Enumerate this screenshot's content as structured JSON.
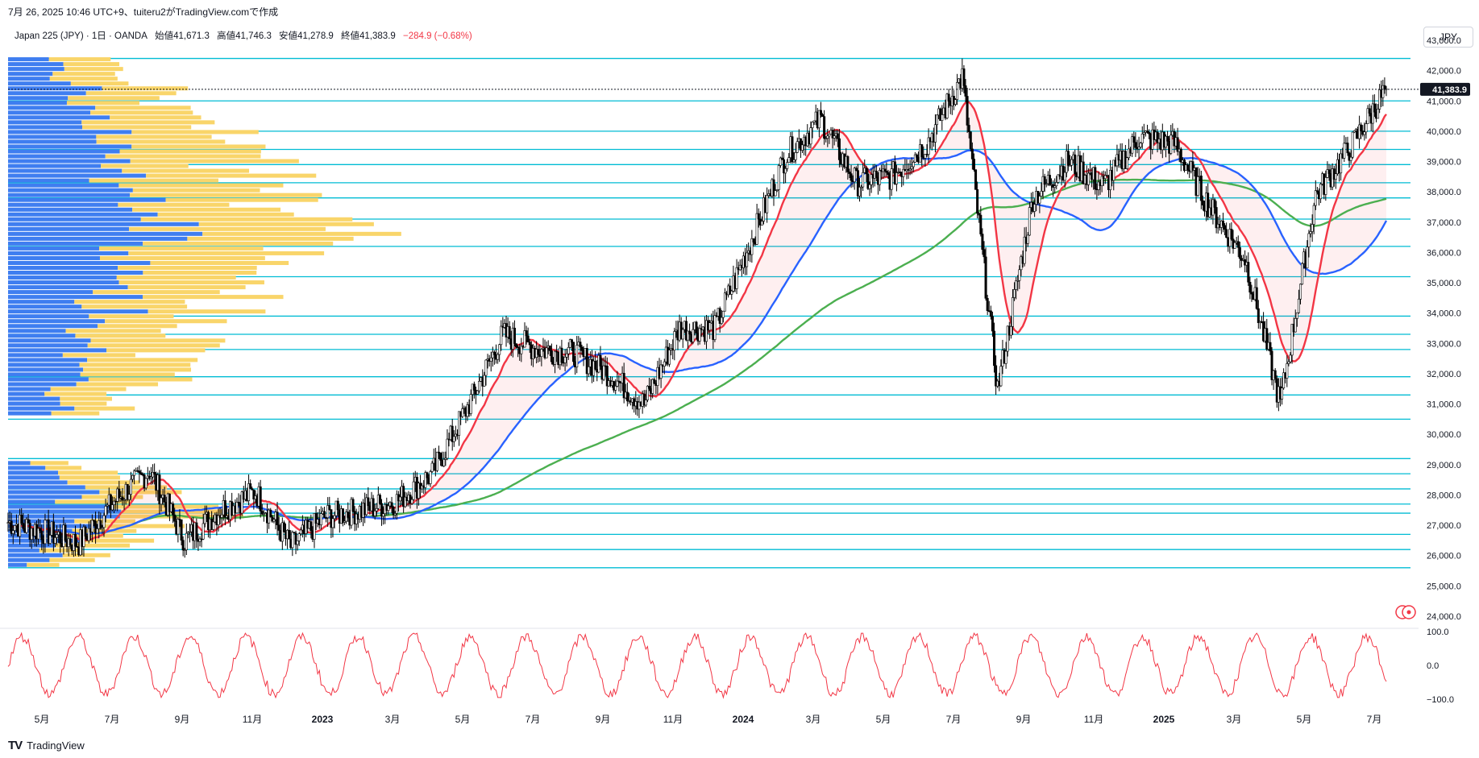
{
  "header": {
    "watermark_line": "7月 26, 2025 10:46 UTC+9、tuiteru2がTradingView.comで作成"
  },
  "legend": {
    "symbol": "Japan 225 (JPY) · 1日 · OANDA",
    "open": "始値41,671.3",
    "high": "高値41,746.3",
    "low": "安値41,278.9",
    "close": "終値41,383.9",
    "change": "−284.9 (−0.68%)"
  },
  "currency_button": "JPY",
  "footer": {
    "brand": "TradingView",
    "logo": "TV"
  },
  "colors": {
    "candle": "#000000",
    "ma_short": "#f23645",
    "ma_mid": "#2962ff",
    "ma_long": "#4caf50",
    "hline": "#00bcd4",
    "vp_blue": "#3f7ef0",
    "vp_yellow": "#f9d56a",
    "oscillator": "#f23645",
    "price_tag": "#131722"
  },
  "chart_data": {
    "type": "candlestick",
    "symbol": "Japan 225 (JPY)",
    "timeframe": "1日",
    "ylim": [
      24000,
      43000
    ],
    "y_ticks": [
      "43,000.0",
      "42,000.0",
      "41,000.0",
      "40,000.0",
      "39,000.0",
      "38,000.0",
      "37,000.0",
      "36,000.0",
      "35,000.0",
      "34,000.0",
      "33,000.0",
      "32,000.0",
      "31,000.0",
      "30,000.0",
      "29,000.0",
      "28,000.0",
      "27,000.0",
      "26,000.0",
      "25,000.0",
      "24,000.0"
    ],
    "x_ticks": [
      "5月",
      "7月",
      "9月",
      "11月",
      "2023",
      "3月",
      "5月",
      "7月",
      "9月",
      "11月",
      "2024",
      "3月",
      "5月",
      "7月",
      "9月",
      "11月",
      "2025",
      "3月",
      "5月",
      "7月"
    ],
    "last_price": 41383.9,
    "last_price_label": "41,383.9",
    "close_path": [
      {
        "month": "2022-04",
        "close": 27100
      },
      {
        "month": "2022-05",
        "close": 26800
      },
      {
        "month": "2022-06",
        "close": 26400
      },
      {
        "month": "2022-07",
        "close": 27800
      },
      {
        "month": "2022-08",
        "close": 28800
      },
      {
        "month": "2022-09",
        "close": 26500
      },
      {
        "month": "2022-10",
        "close": 27500
      },
      {
        "month": "2022-11",
        "close": 28100
      },
      {
        "month": "2022-12",
        "close": 26300
      },
      {
        "month": "2023-01",
        "close": 27300
      },
      {
        "month": "2023-02",
        "close": 27500
      },
      {
        "month": "2023-03",
        "close": 27800
      },
      {
        "month": "2023-04",
        "close": 28700
      },
      {
        "month": "2023-05",
        "close": 30900
      },
      {
        "month": "2023-06",
        "close": 33300
      },
      {
        "month": "2023-07",
        "close": 32800
      },
      {
        "month": "2023-08",
        "close": 32700
      },
      {
        "month": "2023-09",
        "close": 32000
      },
      {
        "month": "2023-10",
        "close": 31000
      },
      {
        "month": "2023-11",
        "close": 33500
      },
      {
        "month": "2023-12",
        "close": 33500
      },
      {
        "month": "2024-01",
        "close": 36300
      },
      {
        "month": "2024-02",
        "close": 39200
      },
      {
        "month": "2024-03",
        "close": 40400
      },
      {
        "month": "2024-04",
        "close": 38300
      },
      {
        "month": "2024-05",
        "close": 38500
      },
      {
        "month": "2024-06",
        "close": 39600
      },
      {
        "month": "2024-07",
        "close": 41800
      },
      {
        "month": "2024-08",
        "close": 31500
      },
      {
        "month": "2024-09",
        "close": 37800
      },
      {
        "month": "2024-10",
        "close": 39000
      },
      {
        "month": "2024-11",
        "close": 38200
      },
      {
        "month": "2024-12",
        "close": 39800
      },
      {
        "month": "2025-01",
        "close": 39600
      },
      {
        "month": "2025-02",
        "close": 37500
      },
      {
        "month": "2025-03",
        "close": 35800
      },
      {
        "month": "2025-04",
        "close": 31000
      },
      {
        "month": "2025-05",
        "close": 37900
      },
      {
        "month": "2025-06",
        "close": 39500
      },
      {
        "month": "2025-07",
        "close": 41400
      }
    ],
    "horizontal_levels": [
      42400,
      41000,
      40000,
      39400,
      38900,
      38300,
      37800,
      37100,
      36200,
      35200,
      33900,
      33300,
      32800,
      31900,
      31300,
      30500,
      29200,
      28700,
      28200,
      27700,
      27400,
      26700,
      26200,
      25600
    ],
    "oscillator": {
      "ylim": [
        -100,
        100
      ],
      "ticks": [
        "100.0",
        "0.0",
        "−100.0"
      ]
    }
  }
}
